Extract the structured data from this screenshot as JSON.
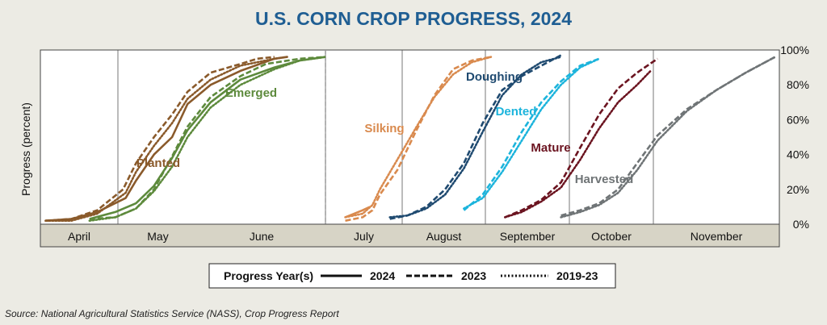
{
  "title": "U.S. CORN CROP PROGRESS, 2024",
  "source": "Source: National Agricultural Statistics Service (NASS), Crop Progress Report",
  "legend": {
    "title": "Progress Year(s)",
    "items": [
      {
        "label": "2024",
        "style": "solid"
      },
      {
        "label": "2023",
        "style": "dashed"
      },
      {
        "label": "2019-23",
        "style": "dotted"
      }
    ]
  },
  "chart_data": {
    "type": "line",
    "title": "U.S. CORN CROP PROGRESS, 2024",
    "ylabel": "Progress (percent)",
    "ylim": [
      0,
      100
    ],
    "yticks": [
      "0%",
      "20%",
      "40%",
      "60%",
      "80%",
      "100%"
    ],
    "months": [
      "April",
      "May",
      "June",
      "July",
      "August",
      "September",
      "October",
      "November"
    ],
    "xlim_days": [
      0,
      245
    ],
    "x_unit": "days after April 1",
    "grid": "vertical month lines",
    "series_colors": {
      "Planted": "#8a5a2b",
      "Emerged": "#5d8a3c",
      "Silking": "#d98a4e",
      "Doughing": "#1f4a70",
      "Dented": "#1cb4dc",
      "Mature": "#6b1420",
      "Harvested": "#6f7476"
    },
    "series": [
      {
        "name": "Planted",
        "year": "2024",
        "style": "solid",
        "x": [
          2,
          12,
          22,
          33,
          37,
          44,
          51,
          57,
          64,
          71,
          79,
          82
        ],
        "y": [
          2,
          3,
          7,
          15,
          25,
          40,
          50,
          69,
          80,
          88,
          95,
          96
        ]
      },
      {
        "name": "Planted",
        "year": "2023",
        "style": "dashed",
        "x": [
          2,
          12,
          22,
          32,
          37,
          44,
          51,
          57,
          64,
          71,
          75,
          79
        ],
        "y": [
          2,
          3,
          8,
          20,
          35,
          50,
          63,
          76,
          87,
          92,
          95,
          96
        ]
      },
      {
        "name": "Planted",
        "year": "2019-23",
        "style": "dotted",
        "x": [
          2,
          12,
          22,
          33,
          37,
          44,
          51,
          57,
          64,
          71,
          79,
          82
        ],
        "y": [
          2,
          2,
          6,
          18,
          30,
          45,
          58,
          72,
          83,
          91,
          95,
          96
        ]
      },
      {
        "name": "Emerged",
        "year": "2024",
        "style": "solid",
        "x": [
          19,
          29,
          37,
          44,
          51,
          57,
          64,
          71,
          79,
          85,
          91
        ],
        "y": [
          3,
          7,
          12,
          22,
          38,
          54,
          70,
          83,
          90,
          94,
          96
        ]
      },
      {
        "name": "Emerged",
        "year": "2023",
        "style": "dashed",
        "x": [
          19,
          29,
          37,
          44,
          51,
          57,
          64,
          71,
          77,
          85,
          91
        ],
        "y": [
          3,
          4,
          9,
          20,
          39,
          56,
          73,
          85,
          92,
          95,
          96
        ]
      },
      {
        "name": "Emerged",
        "year": "2019-23",
        "style": "dotted",
        "x": [
          19,
          29,
          37,
          44,
          51,
          57,
          64,
          71,
          79,
          85,
          91
        ],
        "y": [
          2,
          4,
          9,
          19,
          33,
          50,
          67,
          80,
          89,
          94,
          96
        ]
      },
      {
        "name": "Silking",
        "year": "2024",
        "style": "solid",
        "x": [
          99,
          106,
          109
        ],
        "y": [
          4,
          8,
          10
        ]
      },
      {
        "name": "Silking",
        "year": "2023",
        "style": "dashed",
        "x": [
          99,
          106,
          110,
          113,
          120,
          127,
          134,
          141,
          148,
          155
        ],
        "y": [
          2,
          4,
          8,
          17,
          31,
          53,
          74,
          89,
          94,
          96
        ]
      },
      {
        "name": "Silking",
        "year": "2019-23",
        "style": "dotted",
        "x": [
          99,
          106,
          110,
          113,
          120,
          127,
          134,
          141,
          148,
          155
        ],
        "y": [
          4,
          6,
          11,
          20,
          37,
          55,
          73,
          86,
          93,
          96
        ]
      },
      {
        "name": "Doughing",
        "year": "2023",
        "style": "dashed",
        "x": [
          117,
          124,
          131,
          138,
          145,
          152,
          159,
          166,
          173,
          180
        ],
        "y": [
          3,
          5,
          10,
          20,
          35,
          58,
          77,
          85,
          91,
          97
        ]
      },
      {
        "name": "Doughing",
        "year": "2019-23",
        "style": "dotted",
        "x": [
          117,
          124,
          131,
          138,
          145,
          152,
          159,
          166,
          173,
          180
        ],
        "y": [
          4,
          5,
          9,
          17,
          32,
          53,
          74,
          86,
          93,
          96
        ]
      },
      {
        "name": "Dented",
        "year": "2023",
        "style": "dashed",
        "x": [
          145,
          152,
          159,
          166,
          173,
          180,
          187,
          194
        ],
        "y": [
          8,
          17,
          33,
          53,
          70,
          82,
          91,
          95
        ]
      },
      {
        "name": "Dented",
        "year": "2019-23",
        "style": "dotted",
        "x": [
          145,
          152,
          159,
          166,
          173,
          180,
          187,
          194
        ],
        "y": [
          9,
          15,
          30,
          48,
          66,
          80,
          90,
          95
        ]
      },
      {
        "name": "Mature",
        "year": "2023",
        "style": "dashed",
        "x": [
          160,
          166,
          173,
          180,
          187,
          194,
          201,
          208,
          215
        ],
        "y": [
          4,
          8,
          14,
          24,
          44,
          63,
          78,
          87,
          95
        ]
      },
      {
        "name": "Mature",
        "year": "2019-23",
        "style": "dotted",
        "x": [
          160,
          166,
          173,
          180,
          187,
          194,
          201,
          208,
          213
        ],
        "y": [
          4,
          7,
          13,
          21,
          37,
          55,
          70,
          80,
          88
        ]
      },
      {
        "name": "Harvested",
        "year": "2023",
        "style": "dashed",
        "x": [
          180,
          187,
          194,
          201,
          208,
          215,
          222,
          229,
          236,
          243
        ],
        "y": [
          5,
          8,
          12,
          20,
          35,
          51,
          66,
          77,
          87,
          96
        ]
      },
      {
        "name": "Harvested",
        "year": "2019-23",
        "style": "dotted",
        "x": [
          180,
          187,
          194,
          201,
          208,
          215,
          222,
          229,
          236,
          243
        ],
        "y": [
          4,
          7,
          11,
          18,
          31,
          48,
          65,
          77,
          87,
          96
        ]
      }
    ],
    "annotations": [
      {
        "text": "Planted",
        "series": "Planted"
      },
      {
        "text": "Emerged",
        "series": "Emerged"
      },
      {
        "text": "Silking",
        "series": "Silking"
      },
      {
        "text": "Doughing",
        "series": "Doughing"
      },
      {
        "text": "Dented",
        "series": "Dented"
      },
      {
        "text": "Mature",
        "series": "Mature"
      },
      {
        "text": "Harvested",
        "series": "Harvested"
      }
    ]
  }
}
